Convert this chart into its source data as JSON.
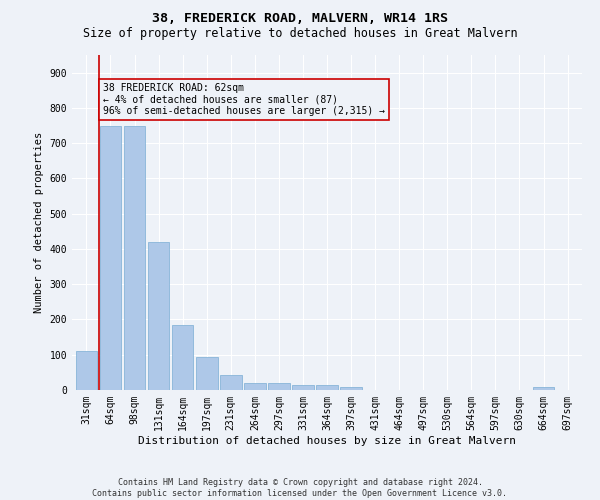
{
  "title": "38, FREDERICK ROAD, MALVERN, WR14 1RS",
  "subtitle": "Size of property relative to detached houses in Great Malvern",
  "xlabel": "Distribution of detached houses by size in Great Malvern",
  "ylabel": "Number of detached properties",
  "footer1": "Contains HM Land Registry data © Crown copyright and database right 2024.",
  "footer2": "Contains public sector information licensed under the Open Government Licence v3.0.",
  "bar_labels": [
    "31sqm",
    "64sqm",
    "98sqm",
    "131sqm",
    "164sqm",
    "197sqm",
    "231sqm",
    "264sqm",
    "297sqm",
    "331sqm",
    "364sqm",
    "397sqm",
    "431sqm",
    "464sqm",
    "497sqm",
    "530sqm",
    "564sqm",
    "597sqm",
    "630sqm",
    "664sqm",
    "697sqm"
  ],
  "bar_values": [
    110,
    750,
    750,
    420,
    185,
    95,
    42,
    20,
    20,
    15,
    15,
    8,
    0,
    0,
    0,
    0,
    0,
    0,
    0,
    8,
    0
  ],
  "bar_color": "#aec8e8",
  "bar_edgecolor": "#7aadd4",
  "property_line_x": 0.53,
  "property_line_color": "#cc0000",
  "annotation_line1": "38 FREDERICK ROAD: 62sqm",
  "annotation_line2": "← 4% of detached houses are smaller (87)",
  "annotation_line3": "96% of semi-detached houses are larger (2,315) →",
  "annotation_box_color": "#cc0000",
  "ylim": [
    0,
    950
  ],
  "yticks": [
    0,
    100,
    200,
    300,
    400,
    500,
    600,
    700,
    800,
    900
  ],
  "bg_color": "#eef2f8",
  "grid_color": "#ffffff",
  "title_fontsize": 9.5,
  "subtitle_fontsize": 8.5,
  "xlabel_fontsize": 8,
  "ylabel_fontsize": 7.5,
  "tick_fontsize": 7,
  "footer_fontsize": 6,
  "annot_fontsize": 7
}
